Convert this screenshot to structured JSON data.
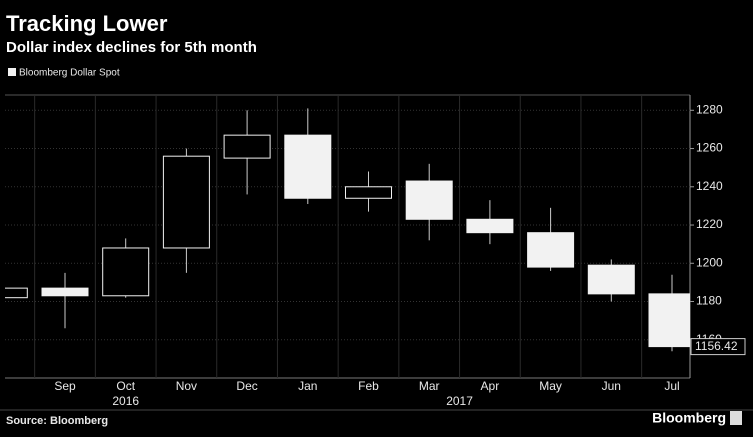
{
  "chart_data": {
    "type": "candlestick",
    "title": "Tracking Lower",
    "subtitle": "Dollar index declines for 5th month",
    "legend": "Bloomberg Dollar Spot",
    "source": "Source: Bloomberg",
    "brand": "Bloomberg",
    "categories": [
      null,
      "Sep",
      "Oct",
      "Nov",
      "Dec",
      "Jan",
      "Feb",
      "Mar",
      "Apr",
      "May",
      "Jun",
      "Jul"
    ],
    "year_labels": [
      "2016",
      "2017"
    ],
    "series": [
      {
        "name": "Bloomberg Dollar Spot",
        "color": "#f2f2f2",
        "open": [
          1182,
          1187,
          1183,
          1208,
          1255,
          1267,
          1234,
          1243,
          1223,
          1216,
          1199,
          1184
        ],
        "high": [
          1188,
          1195,
          1213,
          1260,
          1280,
          1281,
          1248,
          1252,
          1233,
          1229,
          1202,
          1194
        ],
        "low": [
          1182,
          1166,
          1182,
          1195,
          1236,
          1231,
          1227,
          1212,
          1210,
          1196,
          1180,
          1154
        ],
        "close": [
          1187,
          1183,
          1208,
          1256,
          1267,
          1234,
          1240,
          1223,
          1216,
          1198,
          1184,
          1156.42
        ]
      }
    ],
    "ylim": [
      1140,
      1288
    ],
    "yticks": [
      1160,
      1180,
      1200,
      1220,
      1240,
      1260,
      1280
    ],
    "grid": true
  }
}
